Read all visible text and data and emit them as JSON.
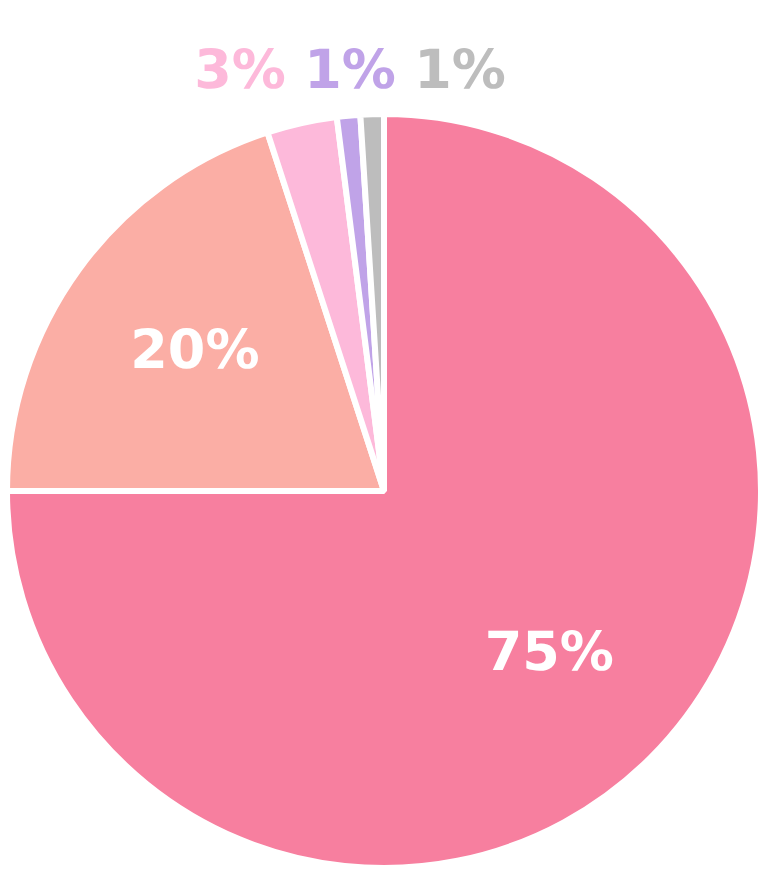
{
  "chart_data": {
    "type": "pie",
    "categories": [
      null,
      null,
      null,
      null,
      null
    ],
    "values": [
      75,
      20,
      3,
      1,
      1
    ],
    "colors": [
      "#f77f9f",
      "#fbaea5",
      "#fdb9da",
      "#c0a3e8",
      "#bdbdbd"
    ],
    "value_labels": [
      "75%",
      "20%",
      "3%",
      "1%",
      "1%"
    ]
  }
}
